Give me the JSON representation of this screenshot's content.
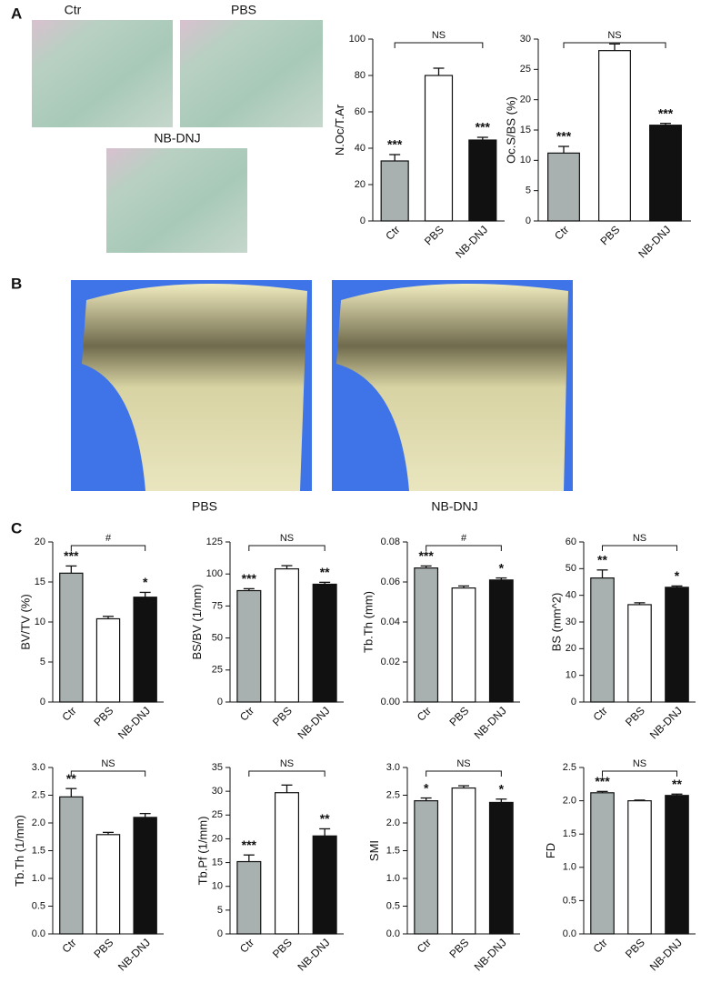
{
  "figure": {
    "panel_labels": [
      "A",
      "B",
      "C"
    ],
    "histology_captions": [
      "Ctr",
      "PBS",
      "NB-DNJ"
    ],
    "microct_captions": [
      "PBS",
      "NB-DNJ"
    ]
  },
  "chart_data": [
    {
      "type": "bar",
      "ylabel": "N.Oc/T.Ar",
      "categories": [
        "Ctr",
        "PBS",
        "NB-DNJ"
      ],
      "colors": [
        "#a8b0b0",
        "#ffffff",
        "#111111"
      ],
      "values": [
        33,
        80,
        44.5
      ],
      "errors": [
        3.5,
        4,
        1.5
      ],
      "annotations": [
        "***",
        null,
        "***"
      ],
      "bracket_label": "NS",
      "ylim": [
        0,
        100
      ],
      "yticks": [
        0,
        20,
        40,
        60,
        80,
        100
      ]
    },
    {
      "type": "bar",
      "ylabel": "Oc.S/BS (%)",
      "categories": [
        "Ctr",
        "PBS",
        "NB-DNJ"
      ],
      "colors": [
        "#a8b0b0",
        "#ffffff",
        "#111111"
      ],
      "values": [
        11.2,
        28.1,
        15.8
      ],
      "errors": [
        1.1,
        1.1,
        0.3
      ],
      "annotations": [
        "***",
        null,
        "***"
      ],
      "bracket_label": "NS",
      "ylim": [
        0,
        30
      ],
      "yticks": [
        0,
        5,
        10,
        15,
        20,
        25,
        30
      ]
    },
    {
      "type": "bar",
      "ylabel": "BV/TV (%)",
      "categories": [
        "Ctr",
        "PBS",
        "NB-DNJ"
      ],
      "colors": [
        "#a8b0b0",
        "#ffffff",
        "#111111"
      ],
      "values": [
        16.1,
        10.4,
        13.1
      ],
      "errors": [
        0.9,
        0.3,
        0.6
      ],
      "annotations": [
        "***",
        null,
        "*"
      ],
      "bracket_label": "#",
      "ylim": [
        0,
        20
      ],
      "yticks": [
        0,
        5,
        10,
        15,
        20
      ]
    },
    {
      "type": "bar",
      "ylabel": "BS/BV (1/mm)",
      "categories": [
        "Ctr",
        "PBS",
        "NB-DNJ"
      ],
      "colors": [
        "#a8b0b0",
        "#ffffff",
        "#111111"
      ],
      "values": [
        87,
        104,
        92
      ],
      "errors": [
        1.5,
        2.5,
        1.5
      ],
      "annotations": [
        "***",
        null,
        "**"
      ],
      "bracket_label": "NS",
      "ylim": [
        0,
        125
      ],
      "yticks": [
        0,
        25,
        50,
        75,
        100,
        125
      ]
    },
    {
      "type": "bar",
      "ylabel": "Tb.Th (mm)",
      "categories": [
        "Ctr",
        "PBS",
        "NB-DNJ"
      ],
      "colors": [
        "#a8b0b0",
        "#ffffff",
        "#111111"
      ],
      "values": [
        0.067,
        0.057,
        0.061
      ],
      "errors": [
        0.001,
        0.001,
        0.001
      ],
      "annotations": [
        "***",
        null,
        "*"
      ],
      "bracket_label": "#",
      "ylim": [
        0,
        0.08
      ],
      "yticks": [
        {
          "value": 0,
          "label": "0.00"
        },
        0.02,
        0.04,
        0.06,
        {
          "value": 0.08,
          "label": "0.08"
        }
      ]
    },
    {
      "type": "bar",
      "ylabel": "BS (mm^2)",
      "categories": [
        "Ctr",
        "PBS",
        "NB-DNJ"
      ],
      "colors": [
        "#a8b0b0",
        "#ffffff",
        "#111111"
      ],
      "values": [
        46.5,
        36.5,
        43
      ],
      "errors": [
        3,
        0.7,
        0.5
      ],
      "annotations": [
        "**",
        null,
        "*"
      ],
      "bracket_label": "NS",
      "ylim": [
        0,
        60
      ],
      "yticks": [
        0,
        10,
        20,
        30,
        40,
        50,
        60
      ]
    },
    {
      "type": "bar",
      "ylabel": "Tb.Th (1/mm)",
      "categories": [
        "Ctr",
        "PBS",
        "NB-DNJ"
      ],
      "colors": [
        "#a8b0b0",
        "#ffffff",
        "#111111"
      ],
      "values": [
        2.47,
        1.79,
        2.1
      ],
      "errors": [
        0.15,
        0.04,
        0.07
      ],
      "annotations": [
        "**",
        null,
        null
      ],
      "bracket_label": "NS",
      "ylim": [
        0,
        3
      ],
      "yticks": [
        {
          "value": 0,
          "label": "0.0"
        },
        0.5,
        {
          "value": 1,
          "label": "1.0"
        },
        1.5,
        {
          "value": 2,
          "label": "2.0"
        },
        2.5,
        {
          "value": 3,
          "label": "3.0"
        }
      ]
    },
    {
      "type": "bar",
      "ylabel": "Tb.Pf (1/mm)",
      "categories": [
        "Ctr",
        "PBS",
        "NB-DNJ"
      ],
      "colors": [
        "#a8b0b0",
        "#ffffff",
        "#111111"
      ],
      "values": [
        15.2,
        29.7,
        20.6
      ],
      "errors": [
        1.4,
        1.6,
        1.5
      ],
      "annotations": [
        "***",
        null,
        "**"
      ],
      "bracket_label": "NS",
      "ylim": [
        0,
        35
      ],
      "yticks": [
        0,
        5,
        10,
        15,
        20,
        25,
        30,
        35
      ]
    },
    {
      "type": "bar",
      "ylabel": "SMI",
      "categories": [
        "Ctr",
        "PBS",
        "NB-DNJ"
      ],
      "colors": [
        "#a8b0b0",
        "#ffffff",
        "#111111"
      ],
      "values": [
        2.4,
        2.63,
        2.37
      ],
      "errors": [
        0.05,
        0.04,
        0.06
      ],
      "annotations": [
        "*",
        null,
        "*"
      ],
      "bracket_label": "NS",
      "ylim": [
        0,
        3
      ],
      "yticks": [
        {
          "value": 0,
          "label": "0.0"
        },
        0.5,
        {
          "value": 1,
          "label": "1.0"
        },
        1.5,
        {
          "value": 2,
          "label": "2.0"
        },
        2.5,
        {
          "value": 3,
          "label": "3.0"
        }
      ]
    },
    {
      "type": "bar",
      "ylabel": "FD",
      "categories": [
        "Ctr",
        "PBS",
        "NB-DNJ"
      ],
      "colors": [
        "#a8b0b0",
        "#ffffff",
        "#111111"
      ],
      "values": [
        2.12,
        2.0,
        2.08
      ],
      "errors": [
        0.02,
        0.01,
        0.02
      ],
      "annotations": [
        "***",
        null,
        "**"
      ],
      "bracket_label": "NS",
      "ylim": [
        0,
        2.5
      ],
      "yticks": [
        {
          "value": 0,
          "label": "0.0"
        },
        0.5,
        {
          "value": 1,
          "label": "1.0"
        },
        1.5,
        {
          "value": 2,
          "label": "2.0"
        },
        2.5
      ]
    }
  ]
}
